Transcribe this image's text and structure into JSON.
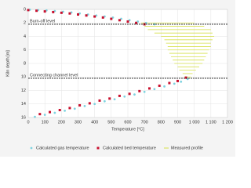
{
  "chart_data": {
    "type": "scatter",
    "xlabel": "Temperature [°C]",
    "ylabel": "Kiln depth [m]",
    "xlim": [
      0,
      1200
    ],
    "ylim": [
      0,
      16
    ],
    "y_inverted": true,
    "grid": true,
    "xticks": [
      0,
      100,
      200,
      300,
      400,
      500,
      600,
      700,
      800,
      900,
      {
        "value": 1000,
        "label": "1 000"
      },
      {
        "value": 1100,
        "label": "1 100"
      },
      {
        "value": 1200,
        "label": "1 200"
      }
    ],
    "yticks": [
      0,
      2,
      4,
      6,
      8,
      10,
      12,
      14,
      16
    ],
    "reference_lines": [
      {
        "value": 2.2,
        "label": "Burn-off level"
      },
      {
        "value": 10.2,
        "label": "Connecting channel level"
      }
    ],
    "series": [
      {
        "name": "Calculated gas temperature",
        "color": "#7fd3e0",
        "marker": "circle",
        "x": [
          10,
          60,
          110,
          160,
          210,
          260,
          310,
          360,
          410,
          460,
          510,
          560,
          610,
          660,
          710,
          760,
          960,
          920,
          880,
          820,
          760,
          700,
          640,
          580,
          520,
          460,
          400,
          340,
          280,
          220,
          160,
          100,
          40
        ],
        "values": [
          0.05,
          0.1,
          0.15,
          0.25,
          0.35,
          0.45,
          0.6,
          0.75,
          0.9,
          1.05,
          1.2,
          1.4,
          1.6,
          1.8,
          2.0,
          2.2,
          10.3,
          10.7,
          11.0,
          11.4,
          11.8,
          12.2,
          12.6,
          12.9,
          13.3,
          13.6,
          14.0,
          14.3,
          14.7,
          15.0,
          15.3,
          15.6,
          15.9
        ]
      },
      {
        "name": "Calculated bed temperature",
        "color": "#c8102e",
        "marker": "square",
        "x": [
          0,
          50,
          100,
          150,
          200,
          250,
          300,
          350,
          400,
          450,
          500,
          550,
          600,
          650,
          700,
          950,
          900,
          850,
          790,
          730,
          670,
          610,
          550,
          490,
          430,
          370,
          310,
          250,
          190,
          130,
          70
        ],
        "values": [
          0.1,
          0.2,
          0.3,
          0.4,
          0.5,
          0.6,
          0.75,
          0.9,
          1.05,
          1.2,
          1.4,
          1.6,
          1.8,
          2.0,
          2.2,
          10.1,
          10.6,
          10.9,
          11.3,
          11.7,
          12.1,
          12.5,
          12.8,
          13.2,
          13.5,
          13.9,
          14.2,
          14.6,
          14.9,
          15.2,
          15.5
        ]
      },
      {
        "name": "Measured profile",
        "color": "#d6e04a",
        "marker": "hline",
        "values": [
          2.0,
          2.5,
          3.0,
          3.5,
          4.0,
          4.5,
          5.0,
          5.5,
          6.0,
          6.5,
          7.0,
          7.5,
          8.0,
          8.5,
          9.0,
          9.5,
          10.0
        ],
        "x_start": [
          680,
          700,
          720,
          760,
          800,
          820,
          830,
          840,
          840,
          850,
          860,
          870,
          880,
          900,
          910,
          930,
          940
        ],
        "x_end": [
          1000,
          1060,
          1100,
          1110,
          1120,
          1110,
          1100,
          1100,
          1090,
          1080,
          1070,
          1060,
          1050,
          1030,
          1010,
          990,
          980
        ]
      }
    ]
  }
}
